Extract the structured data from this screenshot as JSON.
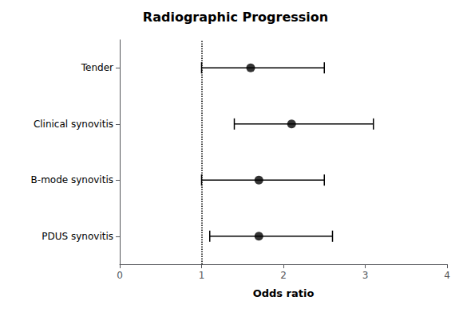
{
  "chart_data": {
    "type": "forest",
    "title": "Radiographic Progression",
    "xlabel": "Odds ratio",
    "categories": [
      "PDUS synovitis",
      "B-mode synovitis",
      "Clinical synovitis",
      "Tender"
    ],
    "values": [
      1.7,
      1.7,
      2.1,
      1.6
    ],
    "ci_low": [
      1.1,
      1.0,
      1.4,
      1.0
    ],
    "ci_high": [
      2.6,
      2.5,
      3.1,
      2.5
    ],
    "vline": 1.0,
    "xlim": [
      0,
      4
    ],
    "xticks": [
      0,
      1,
      2,
      3,
      4
    ],
    "color": "#000000",
    "grid": false
  }
}
